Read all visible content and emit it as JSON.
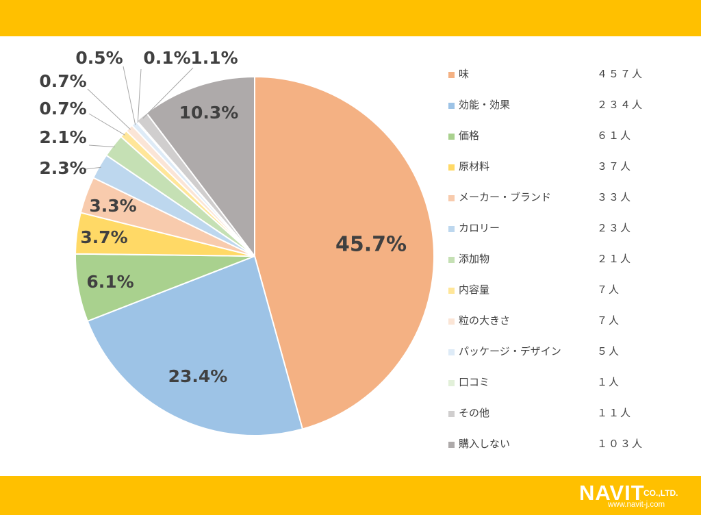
{
  "logo": {
    "mark": "NAVIT",
    "suffix": "CO.,LTD.",
    "url": "www.navit-j.com"
  },
  "chart_data": {
    "type": "pie",
    "slices": [
      {
        "name": "味",
        "value": 45.7,
        "label": "45.7%",
        "count": "４５７人",
        "color": "#F4B183"
      },
      {
        "name": "効能・効果",
        "value": 23.4,
        "label": "23.4%",
        "count": "２３４人",
        "color": "#9DC3E6"
      },
      {
        "name": "価格",
        "value": 6.1,
        "label": "6.1%",
        "count": "６１人",
        "color": "#A9D18E"
      },
      {
        "name": "原材料",
        "value": 3.7,
        "label": "3.7%",
        "count": "３７人",
        "color": "#FFD966"
      },
      {
        "name": "メーカー・ブランド",
        "value": 3.3,
        "label": "3.3%",
        "count": "３３人",
        "color": "#F8CBAD"
      },
      {
        "name": "カロリー",
        "value": 2.3,
        "label": "2.3%",
        "count": "２３人",
        "color": "#BDD7EE"
      },
      {
        "name": "添加物",
        "value": 2.1,
        "label": "2.1%",
        "count": "２１人",
        "color": "#C5E0B4"
      },
      {
        "name": "内容量",
        "value": 0.7,
        "label": "0.7%",
        "count": "７人",
        "color": "#FFE699"
      },
      {
        "name": "粒の大きさ",
        "value": 0.7,
        "label": "0.7%",
        "count": "７人",
        "color": "#FBE5D6"
      },
      {
        "name": "パッケージ・デザイン",
        "value": 0.5,
        "label": "0.5%",
        "count": "５人",
        "color": "#DEEBF7"
      },
      {
        "name": "口コミ",
        "value": 0.1,
        "label": "0.1%",
        "count": "１人",
        "color": "#E2F0D9"
      },
      {
        "name": "その他",
        "value": 1.1,
        "label": "1.1%",
        "count": "１１人",
        "color": "#D0CECE"
      },
      {
        "name": "購入しない",
        "value": 10.3,
        "label": "10.3%",
        "count": "１０３人",
        "color": "#AEAAAA"
      }
    ],
    "legend_position": "right"
  }
}
